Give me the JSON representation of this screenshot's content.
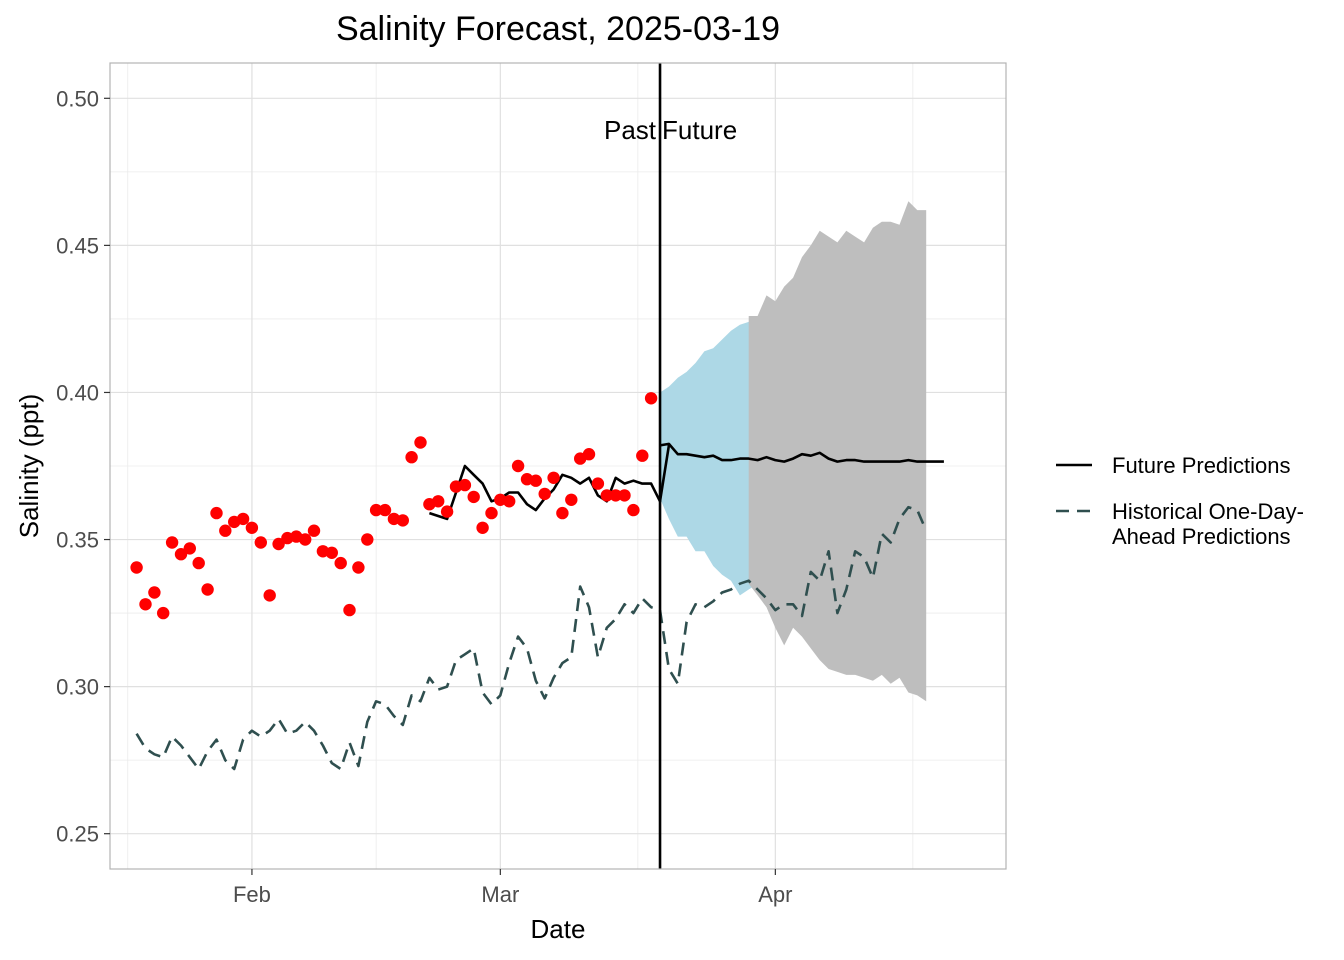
{
  "chart_data": {
    "type": "line",
    "title": "Salinity Forecast, 2025-03-19",
    "xlabel": "Date",
    "ylabel": "Salinity (ppt)",
    "x_range": [
      "2025-01-16",
      "2025-04-27"
    ],
    "ylim": [
      0.238,
      0.512
    ],
    "x_ticks": [
      {
        "label": "Feb",
        "date": "2025-02-01"
      },
      {
        "label": "Mar",
        "date": "2025-03-01"
      },
      {
        "label": "Apr",
        "date": "2025-04-01"
      }
    ],
    "y_ticks": [
      0.25,
      0.3,
      0.35,
      0.4,
      0.45,
      0.5
    ],
    "grid": true,
    "forecast_date": "2025-03-19",
    "annotations": {
      "past": "Past",
      "future": "Future"
    },
    "legend": {
      "position": "right",
      "entries": [
        {
          "label_lines": [
            "Future Predictions"
          ],
          "style": "solid",
          "color": "#000000"
        },
        {
          "label_lines": [
            "Historical One-Day-",
            "Ahead Predictions"
          ],
          "style": "dashed",
          "color": "#2f4f4f"
        }
      ]
    },
    "colors": {
      "observed": "#ff0000",
      "future_line": "#000000",
      "historical": "#2f4f4f",
      "band_near": "#add8e6",
      "band_far": "#bebebe",
      "vline": "#000000"
    },
    "observed": {
      "start_date": "2025-01-19",
      "values": [
        0.3405,
        0.328,
        0.332,
        0.325,
        0.349,
        0.345,
        0.347,
        0.342,
        0.333,
        0.359,
        0.353,
        0.356,
        0.357,
        0.354,
        0.349,
        0.331,
        0.3485,
        0.3505,
        0.351,
        0.35,
        0.353,
        0.346,
        0.3455,
        0.342,
        0.326,
        0.3405,
        0.35,
        0.36,
        0.36,
        0.357,
        0.3565,
        0.378,
        0.383,
        0.362,
        0.363,
        0.3595,
        0.368,
        0.3685,
        0.3645,
        0.354,
        0.359,
        0.3635,
        0.363,
        0.375,
        0.3705,
        0.37,
        0.3655,
        0.371,
        0.359,
        0.3635,
        0.3775,
        0.379,
        0.369,
        0.365,
        0.365,
        0.365,
        0.36,
        0.3785,
        0.398
      ]
    },
    "fit_past": {
      "start_date": "2025-02-21",
      "values": [
        0.359,
        0.358,
        0.357,
        0.366,
        0.375,
        0.372,
        0.369,
        0.363,
        0.364,
        0.366,
        0.366,
        0.362,
        0.36,
        0.364,
        0.367,
        0.372,
        0.371,
        0.369,
        0.371,
        0.365,
        0.363,
        0.371,
        0.369,
        0.37,
        0.369,
        0.369,
        0.363,
        0.382
      ]
    },
    "future_line": {
      "start_date": "2025-03-19",
      "values": [
        0.382,
        0.3825,
        0.379,
        0.379,
        0.3785,
        0.378,
        0.3785,
        0.377,
        0.377,
        0.3775,
        0.3775,
        0.377,
        0.378,
        0.377,
        0.3765,
        0.3775,
        0.379,
        0.3785,
        0.3795,
        0.3775,
        0.3765,
        0.377,
        0.377,
        0.3765,
        0.3765,
        0.3765,
        0.3765,
        0.3765,
        0.377,
        0.3765,
        0.3765,
        0.3765,
        0.3765
      ]
    },
    "band_near": {
      "start_date": "2025-03-19",
      "upper": [
        0.4,
        0.402,
        0.405,
        0.407,
        0.41,
        0.414,
        0.415,
        0.418,
        0.421,
        0.423,
        0.424,
        0.426
      ],
      "lower": [
        0.364,
        0.357,
        0.351,
        0.351,
        0.346,
        0.346,
        0.341,
        0.338,
        0.336,
        0.331,
        0.333,
        0.335
      ]
    },
    "band_far": {
      "start_date": "2025-03-29",
      "upper": [
        0.426,
        0.426,
        0.433,
        0.431,
        0.436,
        0.439,
        0.446,
        0.45,
        0.455,
        0.453,
        0.451,
        0.455,
        0.453,
        0.451,
        0.456,
        0.458,
        0.458,
        0.457,
        0.465,
        0.462,
        0.462
      ],
      "lower": [
        0.335,
        0.331,
        0.327,
        0.32,
        0.314,
        0.32,
        0.317,
        0.313,
        0.309,
        0.306,
        0.305,
        0.304,
        0.304,
        0.303,
        0.302,
        0.304,
        0.301,
        0.303,
        0.298,
        0.297,
        0.295
      ]
    },
    "historical": {
      "start_date": "2025-01-19",
      "values": [
        0.284,
        0.279,
        0.277,
        0.276,
        0.283,
        0.28,
        0.276,
        0.272,
        0.278,
        0.282,
        0.275,
        0.272,
        0.282,
        0.285,
        0.283,
        0.285,
        0.289,
        0.284,
        0.285,
        0.288,
        0.285,
        0.28,
        0.274,
        0.272,
        0.281,
        0.273,
        0.288,
        0.295,
        0.294,
        0.29,
        0.287,
        0.297,
        0.295,
        0.303,
        0.299,
        0.3,
        0.309,
        0.311,
        0.313,
        0.298,
        0.294,
        0.297,
        0.308,
        0.317,
        0.313,
        0.302,
        0.296,
        0.303,
        0.308,
        0.31,
        0.334,
        0.327,
        0.31,
        0.32,
        0.323,
        0.328,
        0.325,
        0.33,
        0.327,
        0.326,
        0.306,
        0.301,
        0.322,
        0.328,
        0.327,
        0.329,
        0.332,
        0.333,
        0.335,
        0.336,
        0.333,
        0.33,
        0.326,
        0.328,
        0.328,
        0.324,
        0.339,
        0.336,
        0.346,
        0.325,
        0.333,
        0.346,
        0.344,
        0.337,
        0.352,
        0.349,
        0.357,
        0.361,
        0.36,
        0.353
      ]
    }
  }
}
